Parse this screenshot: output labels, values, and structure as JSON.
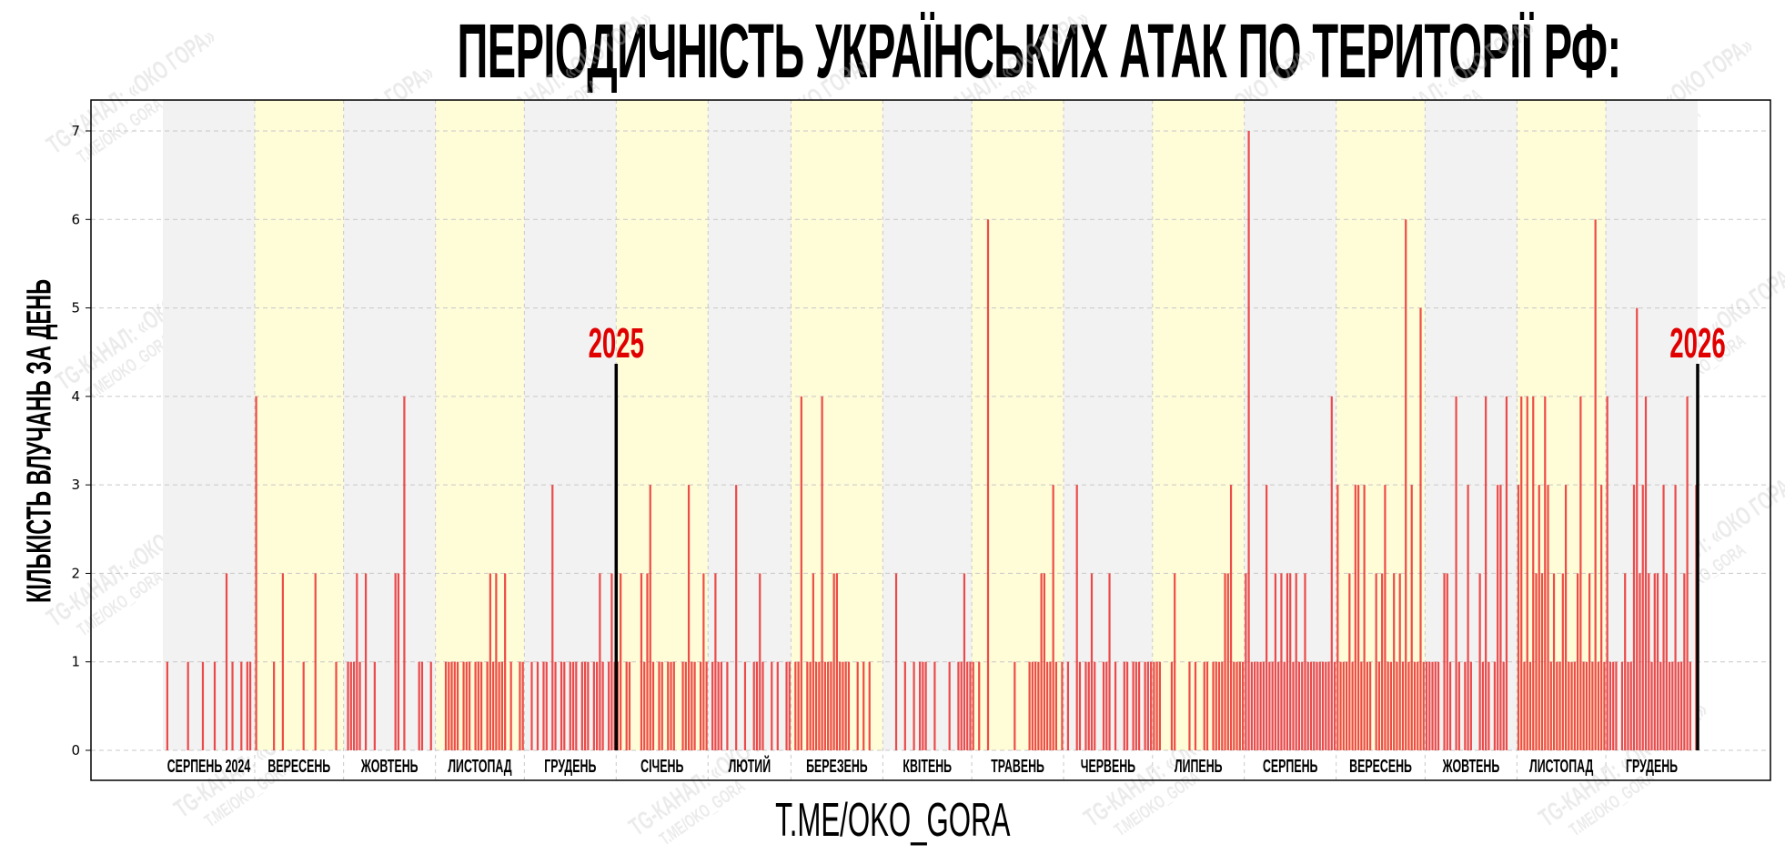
{
  "title": "ПЕРІОДИЧНІСТЬ УКРАЇНСЬКИХ АТАК ПО ТЕРИТОРІЇ РФ:",
  "footer": "T.ME/OKO_GORA",
  "watermark": [
    "TG-КАНАЛ: «ОКО ГОРА»",
    "T.ME/OKO_GORA"
  ],
  "colors": {
    "bar": "#eb2d2d",
    "band_odd": "#f2f2f2",
    "band_even": "#fffcd8",
    "year_label": "#e00000",
    "year_line": "#000000"
  },
  "chart_data": {
    "type": "bar",
    "title": "ПЕРІОДИЧНІСТЬ УКРАЇНСЬКИХ АТАК ПО ТЕРИТОРІЇ РФ:",
    "xlabel": "",
    "ylabel": "КІЛЬКІСТЬ ВЛУЧАНЬ ЗА ДЕНЬ",
    "ylim": [
      0,
      7.35
    ],
    "yticks": [
      0,
      1,
      2,
      3,
      4,
      5,
      6,
      7
    ],
    "grid": true,
    "year_markers": [
      {
        "label": "2025",
        "before_month_index": 5
      },
      {
        "label": "2026",
        "before_month_index": 17
      }
    ],
    "months": [
      {
        "label": "СЕРПЕНЬ 2024",
        "daily": [
          0,
          1,
          0,
          0,
          0,
          0,
          0,
          0,
          1,
          0,
          0,
          0,
          0,
          1,
          0,
          0,
          0,
          1,
          0,
          0,
          0,
          2,
          0,
          1,
          0,
          0,
          1,
          0,
          1,
          1,
          0
        ]
      },
      {
        "label": "ВЕРЕСЕНЬ",
        "daily": [
          4,
          0,
          0,
          0,
          0,
          0,
          1,
          0,
          0,
          2,
          0,
          0,
          0,
          0,
          0,
          0,
          1,
          0,
          0,
          0,
          2,
          0,
          0,
          0,
          0,
          0,
          0,
          1,
          0,
          0
        ]
      },
      {
        "label": "ЖОВТЕНЬ",
        "daily": [
          0,
          1,
          1,
          1,
          2,
          1,
          0,
          2,
          0,
          0,
          1,
          0,
          0,
          0,
          0,
          0,
          0,
          2,
          2,
          0,
          4,
          0,
          0,
          0,
          0,
          1,
          1,
          0,
          0,
          1,
          0
        ]
      },
      {
        "label": "ЛИСТОПАД",
        "daily": [
          0,
          0,
          0,
          1,
          1,
          1,
          1,
          1,
          0,
          1,
          1,
          1,
          0,
          1,
          1,
          1,
          0,
          1,
          2,
          1,
          2,
          1,
          1,
          2,
          0,
          1,
          0,
          0,
          1,
          1
        ]
      },
      {
        "label": "ГРУДЕНЬ",
        "daily": [
          0,
          0,
          1,
          0,
          1,
          0,
          1,
          1,
          0,
          3,
          1,
          0,
          1,
          1,
          0,
          1,
          1,
          1,
          0,
          1,
          1,
          1,
          0,
          1,
          1,
          2,
          1,
          0,
          1,
          2,
          1
        ]
      },
      {
        "label": "СІЧЕНЬ",
        "daily": [
          1,
          2,
          0,
          1,
          1,
          0,
          0,
          0,
          2,
          1,
          2,
          3,
          1,
          0,
          1,
          1,
          0,
          1,
          1,
          1,
          0,
          0,
          1,
          1,
          3,
          1,
          1,
          0,
          1,
          2,
          1
        ]
      },
      {
        "label": "ЛЮТИЙ",
        "daily": [
          0,
          1,
          2,
          1,
          1,
          0,
          1,
          0,
          0,
          3,
          0,
          0,
          1,
          0,
          0,
          1,
          1,
          2,
          1,
          0,
          0,
          1,
          0,
          1,
          0,
          0,
          1,
          1
        ]
      },
      {
        "label": "БЕРЕЗЕНЬ",
        "daily": [
          0,
          1,
          1,
          4,
          0,
          1,
          1,
          2,
          1,
          1,
          4,
          1,
          1,
          1,
          2,
          2,
          1,
          1,
          1,
          1,
          0,
          0,
          1,
          0,
          1,
          0,
          1,
          0,
          0,
          0,
          0
        ]
      },
      {
        "label": "КВІТЕНЬ",
        "daily": [
          0,
          0,
          0,
          0,
          2,
          0,
          0,
          1,
          0,
          0,
          1,
          0,
          1,
          1,
          1,
          0,
          0,
          1,
          0,
          0,
          0,
          0,
          1,
          0,
          0,
          1,
          1,
          2,
          1,
          1
        ]
      },
      {
        "label": "ТРАВЕНЬ",
        "daily": [
          1,
          0,
          1,
          0,
          0,
          6,
          0,
          0,
          0,
          0,
          0,
          0,
          0,
          0,
          1,
          0,
          0,
          0,
          0,
          1,
          1,
          1,
          1,
          2,
          2,
          1,
          1,
          3,
          1,
          0,
          1
        ]
      },
      {
        "label": "ЧЕРВЕНЬ",
        "daily": [
          0,
          1,
          0,
          0,
          3,
          1,
          0,
          1,
          1,
          2,
          1,
          0,
          0,
          1,
          1,
          2,
          0,
          1,
          0,
          0,
          1,
          1,
          0,
          1,
          1,
          1,
          0,
          1,
          1,
          1
        ]
      },
      {
        "label": "ЛИПЕНЬ",
        "daily": [
          1,
          1,
          1,
          0,
          0,
          0,
          1,
          2,
          0,
          0,
          0,
          0,
          1,
          0,
          1,
          0,
          0,
          1,
          1,
          0,
          1,
          1,
          1,
          1,
          2,
          2,
          3,
          1,
          1,
          1,
          1
        ]
      },
      {
        "label": "СЕРПЕНЬ",
        "daily": [
          2,
          7,
          1,
          1,
          1,
          1,
          1,
          3,
          1,
          1,
          2,
          1,
          2,
          1,
          2,
          2,
          1,
          2,
          1,
          1,
          2,
          1,
          1,
          1,
          1,
          1,
          1,
          1,
          1,
          4,
          1
        ]
      },
      {
        "label": "ВЕРЕСЕНЬ",
        "daily": [
          3,
          1,
          1,
          1,
          2,
          1,
          3,
          3,
          1,
          3,
          1,
          1,
          0,
          2,
          1,
          2,
          3,
          1,
          1,
          2,
          1,
          2,
          1,
          6,
          1,
          3,
          1,
          1,
          5,
          1
        ]
      },
      {
        "label": "ЖОВТЕНЬ",
        "daily": [
          1,
          1,
          1,
          1,
          1,
          0,
          2,
          2,
          1,
          0,
          4,
          1,
          0,
          1,
          3,
          1,
          0,
          0,
          2,
          1,
          4,
          1,
          0,
          1,
          3,
          3,
          1,
          4,
          0,
          0,
          0
        ]
      },
      {
        "label": "ЛИСТОПАД",
        "daily": [
          3,
          4,
          1,
          4,
          1,
          4,
          2,
          3,
          2,
          4,
          3,
          1,
          2,
          1,
          1,
          2,
          3,
          1,
          1,
          1,
          2,
          4,
          1,
          1,
          2,
          1,
          6,
          1,
          3,
          1
        ]
      },
      {
        "label": "ГРУДЕНЬ",
        "daily": [
          4,
          1,
          1,
          1,
          0,
          1,
          2,
          1,
          1,
          3,
          5,
          2,
          3,
          4,
          2,
          1,
          2,
          2,
          1,
          3,
          2,
          1,
          1,
          3,
          1,
          1,
          2,
          4,
          1,
          0,
          3
        ]
      }
    ]
  }
}
